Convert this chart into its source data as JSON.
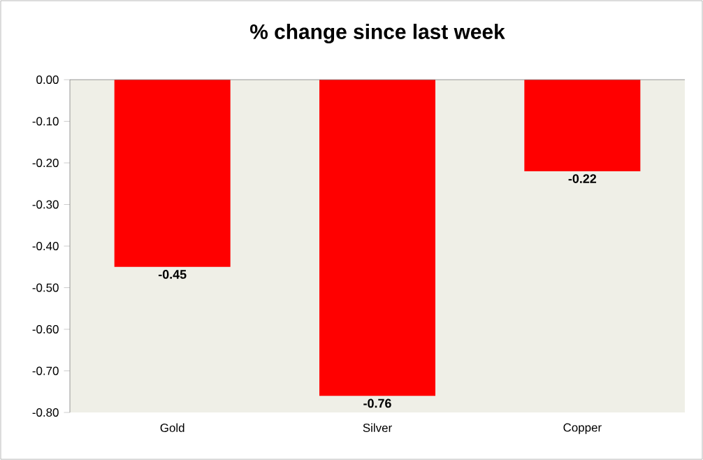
{
  "chart_data": {
    "type": "bar",
    "title": "% change since last week",
    "categories": [
      "Gold",
      "Silver",
      "Copper"
    ],
    "values": [
      -0.45,
      -0.76,
      -0.22
    ],
    "value_labels": [
      "-0.45",
      "-0.76",
      "-0.22"
    ],
    "color": "#ff0000",
    "ylim": [
      -0.8,
      0
    ],
    "yticks": [
      {
        "value": 0,
        "label": "0.00"
      },
      {
        "value": -0.1,
        "label": "-0.10"
      },
      {
        "value": -0.2,
        "label": "-0.20"
      },
      {
        "value": -0.3,
        "label": "-0.30"
      },
      {
        "value": -0.4,
        "label": "-0.40"
      },
      {
        "value": -0.5,
        "label": "-0.50"
      },
      {
        "value": -0.6,
        "label": "-0.60"
      },
      {
        "value": -0.7,
        "label": "-0.70"
      },
      {
        "value": -0.8,
        "label": "-0.80"
      }
    ]
  }
}
